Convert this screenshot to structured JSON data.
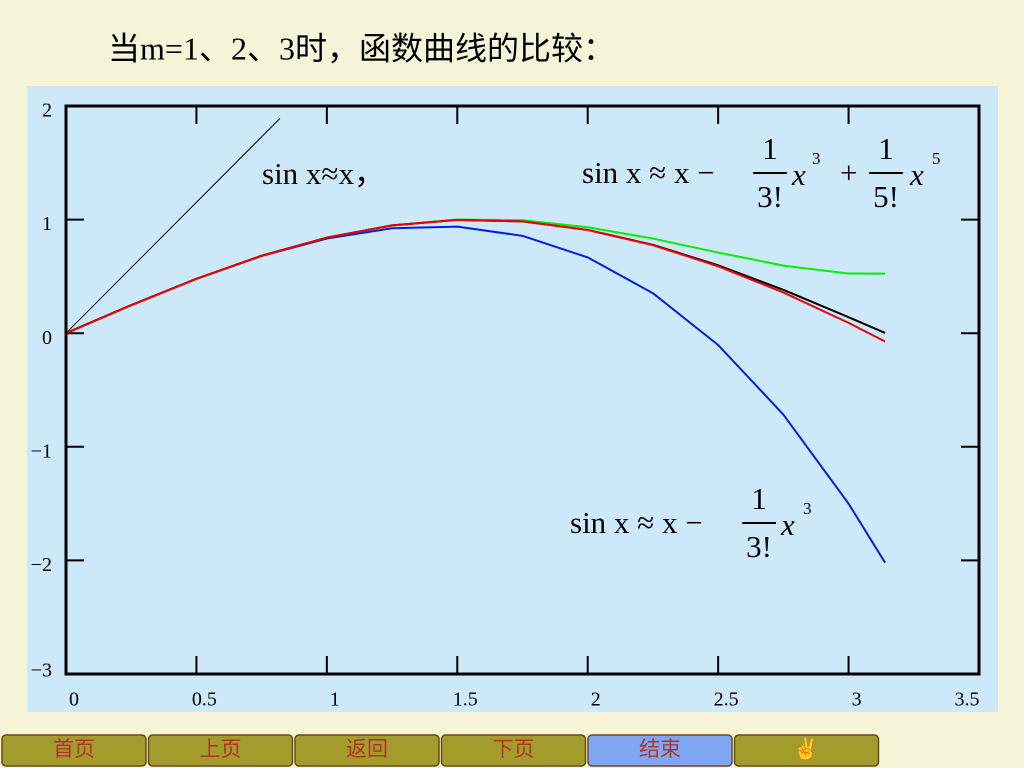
{
  "chart_data": {
    "type": "line",
    "title": "当m=1、2、3时，函数曲线的比较：",
    "xlim": [
      0,
      3.5
    ],
    "xticks": [
      0,
      0.5,
      1,
      1.5,
      2,
      2.5,
      3,
      3.5
    ],
    "ylim": [
      -3,
      2
    ],
    "yticks": [
      {
        "value": -3,
        "label": "−3"
      },
      {
        "value": -2,
        "label": "−2"
      },
      {
        "value": -1,
        "label": "−1"
      },
      0,
      1,
      2
    ],
    "grid": false,
    "series": [
      {
        "color": "#000000",
        "width": 1,
        "x": [
          0,
          0.82
        ],
        "values": [
          0,
          1.89
        ]
      },
      {
        "color": "#0022dd",
        "width": 2,
        "x": [
          0,
          0.25,
          0.5,
          0.75,
          1,
          1.25,
          1.5,
          1.75,
          2,
          2.25,
          2.5,
          2.75,
          3,
          3.14
        ],
        "values": [
          0,
          0.247,
          0.479,
          0.68,
          0.833,
          0.924,
          0.938,
          0.857,
          0.667,
          0.352,
          -0.104,
          -0.716,
          -1.5,
          -2.02
        ]
      },
      {
        "color": "#00ee00",
        "width": 2,
        "x": [
          0,
          0.25,
          0.5,
          0.75,
          1,
          1.25,
          1.5,
          1.75,
          2,
          2.25,
          2.5,
          2.75,
          3,
          3.14
        ],
        "values": [
          0,
          0.247,
          0.479,
          0.682,
          0.842,
          0.949,
          1.001,
          0.994,
          0.933,
          0.833,
          0.71,
          0.595,
          0.525,
          0.524
        ]
      },
      {
        "color": "#000000",
        "width": 2,
        "x": [
          0,
          0.25,
          0.5,
          0.75,
          1,
          1.25,
          1.5,
          1.75,
          2,
          2.25,
          2.5,
          2.75,
          3,
          3.14
        ],
        "values": [
          0,
          0.247,
          0.479,
          0.682,
          0.841,
          0.949,
          0.997,
          0.984,
          0.909,
          0.778,
          0.598,
          0.382,
          0.141,
          0.002
        ]
      },
      {
        "color": "#ee0000",
        "width": 2,
        "x": [
          0,
          0.25,
          0.5,
          0.75,
          1,
          1.25,
          1.5,
          1.75,
          2,
          2.25,
          2.5,
          2.75,
          3,
          3.14
        ],
        "values": [
          0,
          0.247,
          0.479,
          0.682,
          0.841,
          0.948,
          0.998,
          0.984,
          0.908,
          0.775,
          0.589,
          0.359,
          0.091,
          -0.073
        ]
      }
    ],
    "annotations": {
      "first": "sin x≈x，",
      "fifth": {
        "lhs": "sin x ≈ x −",
        "n1": "1",
        "d1": "3!",
        "t1": "x",
        "e1": "3",
        "op": "+",
        "n2": "1",
        "d2": "5!",
        "t2": "x",
        "e2": "5"
      },
      "third": {
        "lhs": "sin x ≈ x −",
        "n1": "1",
        "d1": "3!",
        "t1": "x",
        "e1": "3"
      }
    },
    "nav": [
      "首页",
      "上页",
      "返回",
      "下页",
      "结束",
      "✌"
    ]
  }
}
